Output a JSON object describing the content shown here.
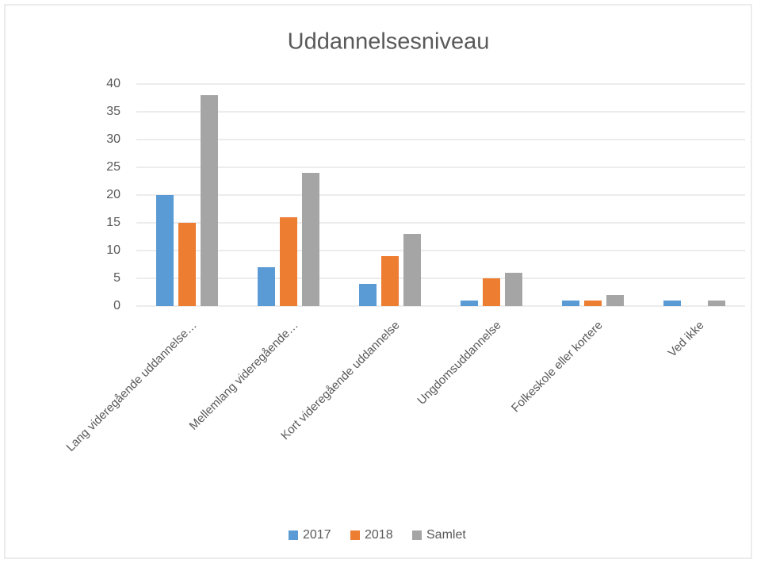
{
  "chart_data": {
    "type": "bar",
    "title": "Uddannelsesniveau",
    "categories": [
      "Lang videregående uddannelse…",
      "Mellemlang videregående…",
      "Kort videregående uddannelse",
      "Ungdomsuddannelse",
      "Folkeskole eller kortere",
      "Ved ikke"
    ],
    "series": [
      {
        "name": "2017",
        "color": "#5b9bd5",
        "values": [
          20,
          7,
          4,
          1,
          1,
          1
        ]
      },
      {
        "name": "2018",
        "color": "#ed7d31",
        "values": [
          15,
          16,
          9,
          5,
          1,
          0
        ]
      },
      {
        "name": "Samlet",
        "color": "#a5a5a5",
        "values": [
          38,
          24,
          13,
          6,
          2,
          1
        ]
      }
    ],
    "ylim": [
      0,
      40
    ],
    "yticks": [
      0,
      5,
      10,
      15,
      20,
      25,
      30,
      35,
      40
    ],
    "grid": true,
    "legend": "bottom"
  }
}
